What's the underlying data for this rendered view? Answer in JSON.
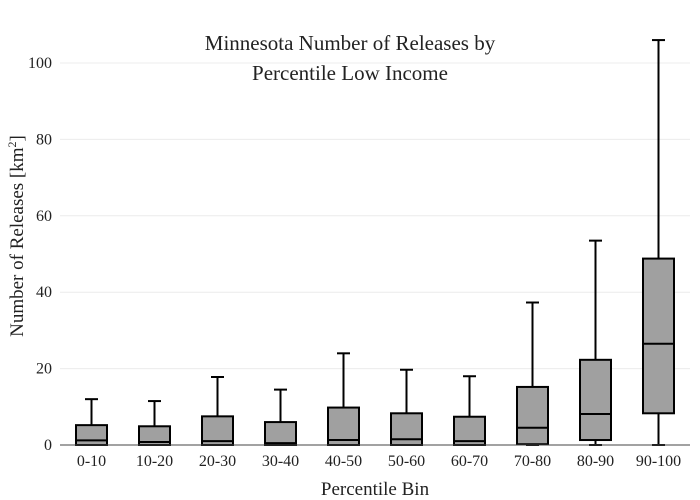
{
  "chart_data": {
    "type": "box",
    "title_line1": "Minnesota Number of Releases by",
    "title_line2": "Percentile Low Income",
    "xlabel": "Percentile Bin",
    "ylabel_main": "Number of Releases  [km",
    "ylabel_sup": "2",
    "ylabel_close": "]",
    "ylim": [
      0,
      110
    ],
    "yticks": [
      0,
      20,
      40,
      60,
      80,
      100
    ],
    "ytick_labels": [
      "0",
      "20",
      "40",
      "60",
      "80",
      "100"
    ],
    "grid": true,
    "box_color": "#a0a0a0",
    "line_color": "#000000",
    "categories": [
      "0-10",
      "10-20",
      "20-30",
      "30-40",
      "40-50",
      "50-60",
      "60-70",
      "70-80",
      "80-90",
      "90-100"
    ],
    "boxes": [
      {
        "min": 0,
        "q1": 0,
        "median": 1.2,
        "q3": 5.2,
        "max": 12
      },
      {
        "min": 0,
        "q1": 0,
        "median": 0.8,
        "q3": 4.9,
        "max": 11.5
      },
      {
        "min": 0,
        "q1": 0,
        "median": 1.0,
        "q3": 7.5,
        "max": 17.8
      },
      {
        "min": 0,
        "q1": 0,
        "median": 0.5,
        "q3": 6.0,
        "max": 14.5
      },
      {
        "min": 0,
        "q1": 0,
        "median": 1.3,
        "q3": 9.8,
        "max": 24
      },
      {
        "min": 0,
        "q1": 0,
        "median": 1.5,
        "q3": 8.3,
        "max": 19.7
      },
      {
        "min": 0,
        "q1": 0,
        "median": 1.0,
        "q3": 7.4,
        "max": 18
      },
      {
        "min": 0,
        "q1": 0.2,
        "median": 4.5,
        "q3": 15.2,
        "max": 37.3
      },
      {
        "min": 0,
        "q1": 1.3,
        "median": 8.1,
        "q3": 22.3,
        "max": 53.5
      },
      {
        "min": 0,
        "q1": 8.3,
        "median": 26.5,
        "q3": 48.8,
        "max": 106
      }
    ]
  }
}
